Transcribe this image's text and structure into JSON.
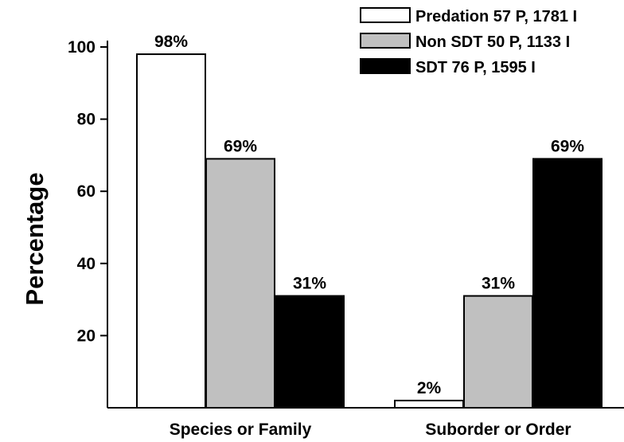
{
  "chart_data": {
    "type": "bar",
    "title": "",
    "xlabel": "",
    "ylabel": "Percentage",
    "ylim": [
      0,
      100
    ],
    "yticks": [
      20,
      40,
      60,
      80,
      100
    ],
    "categories": [
      "Species or Family",
      "Suborder or Order"
    ],
    "series": [
      {
        "name": "Predation 57 P, 1781 I",
        "values": [
          98,
          2
        ],
        "labels": [
          "98%",
          "2%"
        ],
        "color": "#ffffff"
      },
      {
        "name": "Non SDT  50 P, 1133 I",
        "values": [
          69,
          31
        ],
        "labels": [
          "69%",
          "31%"
        ],
        "color": "#c0c0c0"
      },
      {
        "name": "SDT 76 P, 1595 I",
        "values": [
          31,
          69
        ],
        "labels": [
          "31%",
          "69%"
        ],
        "color": "#000000"
      }
    ],
    "legend_position": "top-right",
    "grid": false
  }
}
